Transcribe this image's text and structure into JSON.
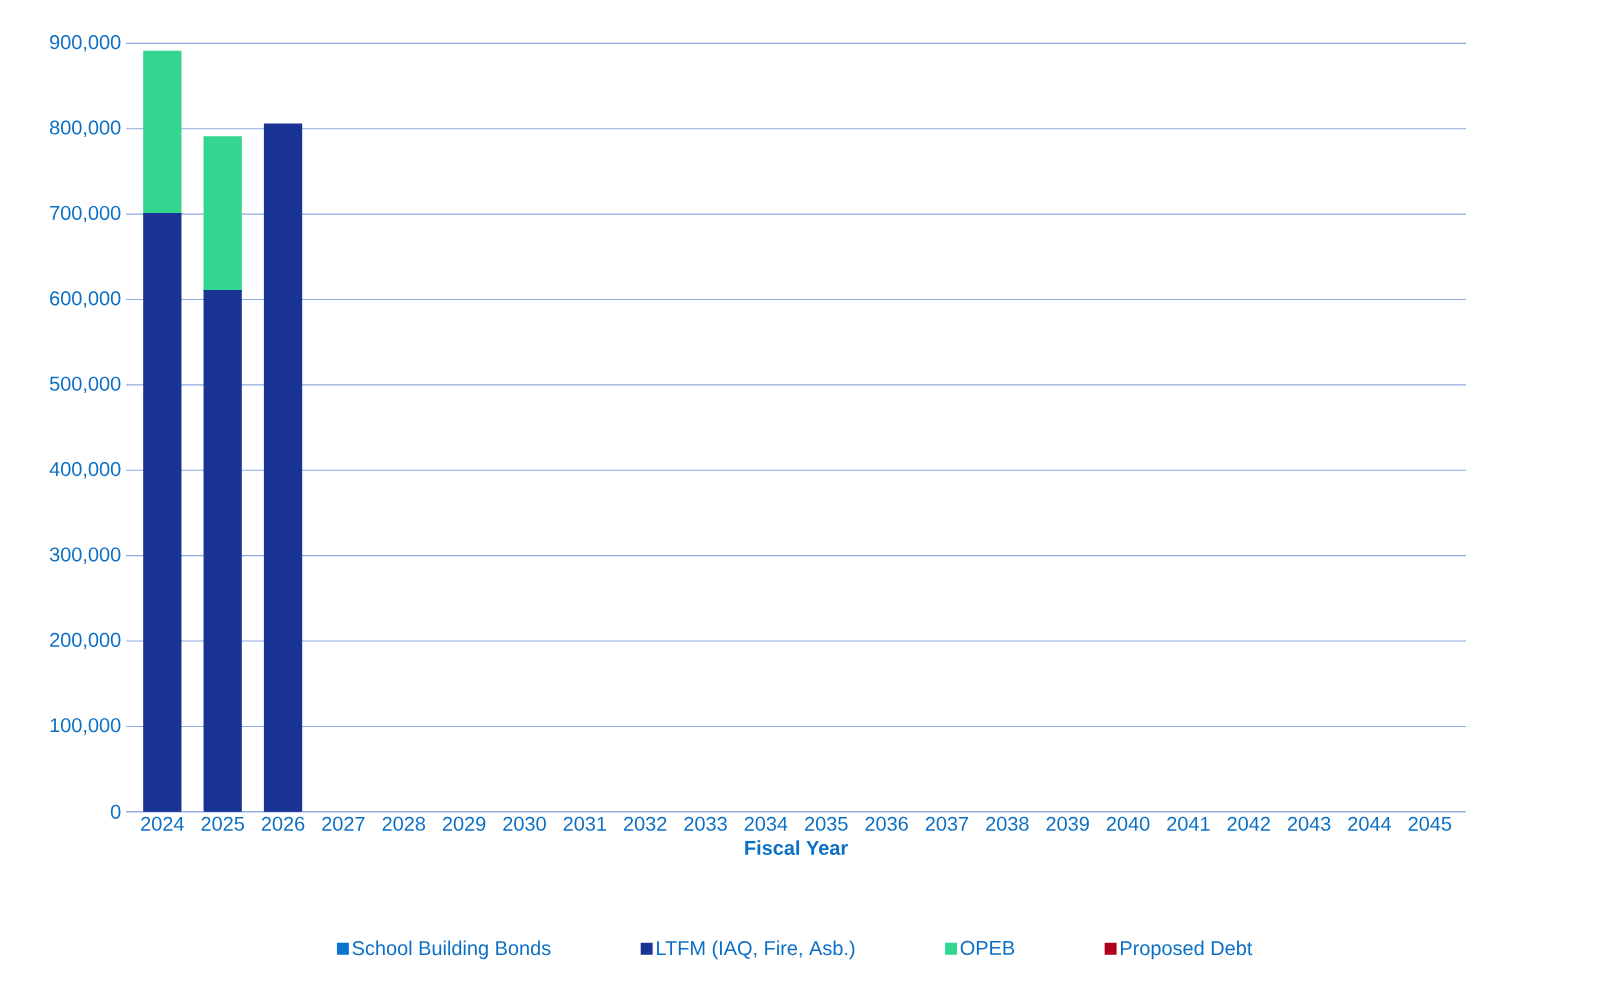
{
  "chart_data": {
    "type": "bar",
    "stacked": true,
    "xlabel": "Fiscal Year",
    "categories": [
      "2024",
      "2025",
      "2026",
      "2027",
      "2028",
      "2029",
      "2030",
      "2031",
      "2032",
      "2033",
      "2034",
      "2035",
      "2036",
      "2037",
      "2038",
      "2039",
      "2040",
      "2041",
      "2042",
      "2043",
      "2044",
      "2045"
    ],
    "series": [
      {
        "name": "School Building Bonds",
        "color": "#0b74d1",
        "values": [
          0,
          0,
          0,
          0,
          0,
          0,
          0,
          0,
          0,
          0,
          0,
          0,
          0,
          0,
          0,
          0,
          0,
          0,
          0,
          0,
          0,
          0
        ]
      },
      {
        "name": "LTFM (IAQ, Fire, Asb.)",
        "color": "#1a3496",
        "values": [
          700000,
          610000,
          805000,
          0,
          0,
          0,
          0,
          0,
          0,
          0,
          0,
          0,
          0,
          0,
          0,
          0,
          0,
          0,
          0,
          0,
          0,
          0
        ]
      },
      {
        "name": "OPEB",
        "color": "#33d68f",
        "values": [
          190000,
          180000,
          0,
          0,
          0,
          0,
          0,
          0,
          0,
          0,
          0,
          0,
          0,
          0,
          0,
          0,
          0,
          0,
          0,
          0,
          0,
          0
        ]
      },
      {
        "name": "Proposed Debt",
        "color": "#b0001e",
        "values": [
          0,
          0,
          0,
          0,
          0,
          0,
          0,
          0,
          0,
          0,
          0,
          0,
          0,
          0,
          0,
          0,
          0,
          0,
          0,
          0,
          0,
          0
        ]
      }
    ],
    "ylim": [
      0,
      900000
    ],
    "yticks": [
      0,
      {
        "value": 100000,
        "label": "100,000"
      },
      {
        "value": 200000,
        "label": "200,000"
      },
      {
        "value": 300000,
        "label": "300,000"
      },
      {
        "value": 400000,
        "label": "400,000"
      },
      {
        "value": 500000,
        "label": "500,000"
      },
      {
        "value": 600000,
        "label": "600,000"
      },
      {
        "value": 700000,
        "label": "700,000"
      },
      {
        "value": 800000,
        "label": "800,000"
      },
      {
        "value": 900000,
        "label": "900,000"
      }
    ],
    "grid": "y",
    "legend": "bottom"
  }
}
